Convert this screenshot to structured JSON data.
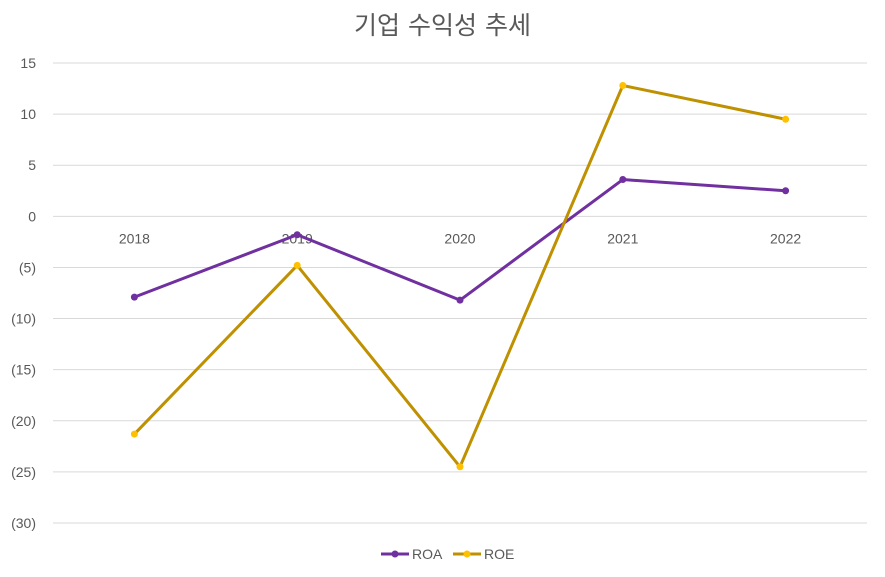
{
  "chart_data": {
    "type": "line",
    "title": "기업 수익성 추세",
    "xlabel": "",
    "ylabel": "",
    "categories": [
      "2018",
      "2019",
      "2020",
      "2021",
      "2022"
    ],
    "y_ticks": [
      15,
      10,
      5,
      0,
      -5,
      -10,
      -15,
      -20,
      -25,
      -30
    ],
    "y_tick_labels": [
      "15",
      "10",
      "5",
      "0",
      "(5)",
      "(10)",
      "(15)",
      "(20)",
      "(25)",
      "(30)"
    ],
    "ylim": [
      -30,
      15
    ],
    "grid": true,
    "legend_position": "bottom",
    "series": [
      {
        "name": "ROA",
        "color": "#7030a0",
        "values": [
          -7.9,
          -1.8,
          -8.2,
          3.6,
          2.5
        ]
      },
      {
        "name": "ROE",
        "color": "#bf9000",
        "marker_color": "#ffc000",
        "values": [
          -21.3,
          -4.8,
          -24.5,
          12.8,
          9.5
        ]
      }
    ]
  }
}
